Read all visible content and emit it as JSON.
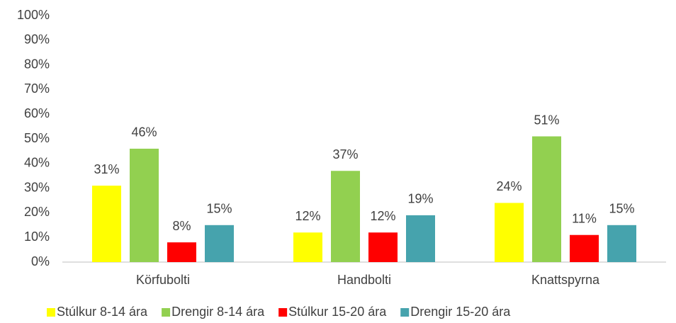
{
  "chart_data": {
    "type": "bar",
    "categories": [
      "Körfubolti",
      "Handbolti",
      "Knattspyrna"
    ],
    "series": [
      {
        "name": "Stúlkur 8-14 ára",
        "color": "#ffff00",
        "values": [
          31,
          12,
          24
        ],
        "value_labels": [
          "31%",
          "12%",
          "24%"
        ]
      },
      {
        "name": "Drengir 8-14 ára",
        "color": "#92d050",
        "values": [
          46,
          37,
          51
        ],
        "value_labels": [
          "46%",
          "37%",
          "51%"
        ]
      },
      {
        "name": "Stúlkur 15-20 ára",
        "color": "#ff0000",
        "values": [
          8,
          12,
          11
        ],
        "value_labels": [
          "8%",
          "12%",
          "11%"
        ]
      },
      {
        "name": "Drengir 15-20 ára",
        "color": "#46a3ad",
        "values": [
          15,
          19,
          15
        ],
        "value_labels": [
          "15%",
          "19%",
          "15%"
        ]
      }
    ],
    "ylim": [
      0,
      100
    ],
    "yticks": [
      {
        "value": 0,
        "label": "0%"
      },
      {
        "value": 10,
        "label": "10%"
      },
      {
        "value": 20,
        "label": "20%"
      },
      {
        "value": 30,
        "label": "30%"
      },
      {
        "value": 40,
        "label": "40%"
      },
      {
        "value": 50,
        "label": "50%"
      },
      {
        "value": 60,
        "label": "60%"
      },
      {
        "value": 70,
        "label": "70%"
      },
      {
        "value": 80,
        "label": "80%"
      },
      {
        "value": 90,
        "label": "90%"
      },
      {
        "value": 100,
        "label": "100%"
      }
    ],
    "grid": false,
    "legend": "bottom"
  }
}
